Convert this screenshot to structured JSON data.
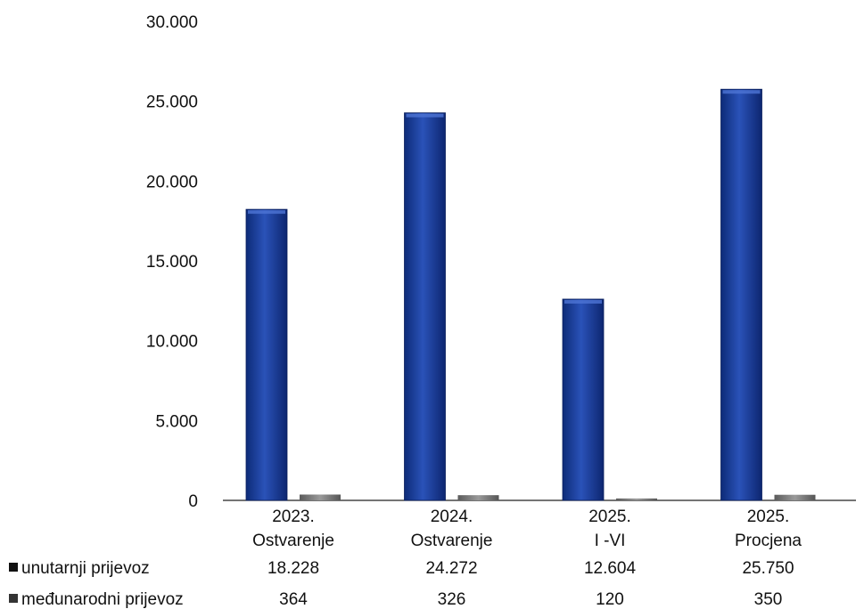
{
  "chart_data": {
    "type": "bar",
    "categories": [
      [
        "2023.",
        "Ostvarenje"
      ],
      [
        "2024.",
        "Ostvarenje"
      ],
      [
        "2025.",
        "I -VI"
      ],
      [
        "2025.",
        "Procjena"
      ]
    ],
    "series": [
      {
        "name": "unutarnji prijevoz",
        "values": [
          18228,
          24272,
          12604,
          25750
        ],
        "labels": [
          "18.228",
          "24.272",
          "12.604",
          "25.750"
        ],
        "color": "#1f3f9a"
      },
      {
        "name": "međunarodni prijevoz",
        "values": [
          364,
          326,
          120,
          350
        ],
        "labels": [
          "364",
          "326",
          "120",
          "350"
        ],
        "color": "#6e6e6e"
      }
    ],
    "ylim": [
      0,
      30000
    ],
    "yticks": [
      "30.000",
      "25.000",
      "20.000",
      "15.000",
      "10.000",
      "5.000",
      "0"
    ],
    "ytick_values": [
      30000,
      25000,
      20000,
      15000,
      10000,
      5000,
      0
    ],
    "grid": false,
    "legend": "data table below chart",
    "title": "",
    "xlabel": "",
    "ylabel": ""
  }
}
